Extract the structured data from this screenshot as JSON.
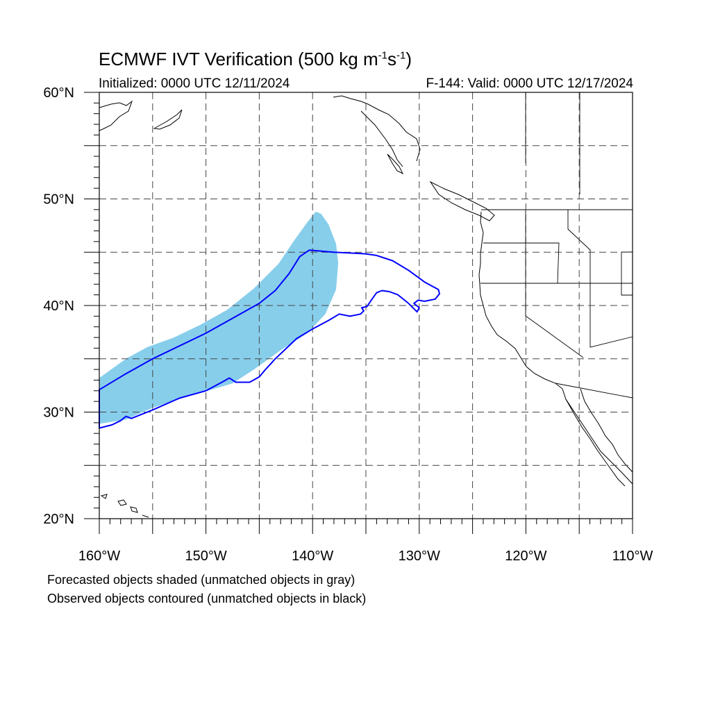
{
  "title": {
    "text": "ECMWF IVT Verification (500 kg m",
    "exp1": "-1",
    "mid": "s",
    "exp2": "-1",
    "close": ")"
  },
  "subtitle": {
    "initialized": "Initialized: 0000 UTC 12/11/2024",
    "valid": "F-144: Valid: 0000 UTC 12/17/2024"
  },
  "axes": {
    "lat_labels": [
      "60°N",
      "50°N",
      "40°N",
      "30°N",
      "20°N"
    ],
    "lon_labels": [
      "160°W",
      "150°W",
      "140°W",
      "130°W",
      "120°W",
      "110°W"
    ],
    "lat_range": [
      20,
      60
    ],
    "lon_range": [
      -160,
      -110
    ],
    "grid_spacing_deg": 5
  },
  "legend": {
    "line1": "Forecasted objects shaded (unmatched objects in gray)",
    "line2": "Observed objects contoured (unmatched objects in black)"
  },
  "colors": {
    "forecast_fill": "#87ceeb",
    "observed_contour": "#0000ff",
    "coastline": "#000000",
    "grid": "#555555"
  },
  "map_objects": {
    "forecast_object": {
      "style": "shaded",
      "outline_lonlat": [
        [
          -160,
          28.9
        ],
        [
          -157.5,
          29.3
        ],
        [
          -155,
          30.4
        ],
        [
          -152,
          31.4
        ],
        [
          -149.5,
          32.1
        ],
        [
          -147.5,
          32.7
        ],
        [
          -145.5,
          34.0
        ],
        [
          -143.0,
          35.8
        ],
        [
          -140.5,
          37.4
        ],
        [
          -138.8,
          39.2
        ],
        [
          -137.8,
          41.5
        ],
        [
          -137.6,
          44.0
        ],
        [
          -137.8,
          45.8
        ],
        [
          -138.5,
          47.6
        ],
        [
          -139.2,
          48.6
        ],
        [
          -139.7,
          48.8
        ],
        [
          -140.5,
          47.8
        ],
        [
          -141.8,
          46.0
        ],
        [
          -143.2,
          43.9
        ],
        [
          -145.5,
          41.6
        ],
        [
          -148.0,
          39.6
        ],
        [
          -150.5,
          38.2
        ],
        [
          -153.0,
          37.0
        ],
        [
          -155.5,
          36.1
        ],
        [
          -157.5,
          35.0
        ],
        [
          -160,
          33.2
        ]
      ]
    },
    "observed_object": {
      "style": "contour",
      "outline_lonlat": [
        [
          -160,
          32.1
        ],
        [
          -157.5,
          33.6
        ],
        [
          -155,
          35.0
        ],
        [
          -152.5,
          36.2
        ],
        [
          -150,
          37.4
        ],
        [
          -147.5,
          38.8
        ],
        [
          -145,
          40.2
        ],
        [
          -143.5,
          41.4
        ],
        [
          -142.2,
          43.0
        ],
        [
          -141.2,
          44.6
        ],
        [
          -140.3,
          45.2
        ],
        [
          -138,
          45.0
        ],
        [
          -136,
          44.9
        ],
        [
          -135,
          44.85
        ],
        [
          -134,
          44.7
        ],
        [
          -132.5,
          44.2
        ],
        [
          -131,
          43.3
        ],
        [
          -129.5,
          42.2
        ],
        [
          -128.2,
          41.5
        ],
        [
          -128.1,
          41.1
        ],
        [
          -128.5,
          40.6
        ],
        [
          -129.5,
          40.4
        ],
        [
          -130.1,
          40.5
        ],
        [
          -130.5,
          40.2
        ],
        [
          -130.0,
          39.8
        ],
        [
          -130.2,
          39.4
        ],
        [
          -131.0,
          40.2
        ],
        [
          -132.0,
          41.0
        ],
        [
          -132.8,
          41.3
        ],
        [
          -133.5,
          41.4
        ],
        [
          -134.0,
          41.2
        ],
        [
          -134.5,
          40.5
        ],
        [
          -134.9,
          39.9
        ],
        [
          -135.4,
          39.8
        ],
        [
          -135.2,
          39.5
        ],
        [
          -135.5,
          39.2
        ],
        [
          -136.5,
          39.0
        ],
        [
          -137.5,
          39.2
        ],
        [
          -138.5,
          38.6
        ],
        [
          -140.0,
          37.8
        ],
        [
          -141.5,
          36.9
        ],
        [
          -143.5,
          35.0
        ],
        [
          -144.5,
          33.9
        ],
        [
          -145,
          33.3
        ],
        [
          -145.9,
          32.8
        ],
        [
          -147.2,
          32.8
        ],
        [
          -147.8,
          33.2
        ],
        [
          -148.5,
          32.8
        ],
        [
          -150,
          32.0
        ],
        [
          -152.5,
          31.3
        ],
        [
          -155,
          30.2
        ],
        [
          -157,
          29.4
        ],
        [
          -157.5,
          29.6
        ],
        [
          -158.0,
          29.2
        ],
        [
          -158.8,
          28.8
        ],
        [
          -160,
          28.5
        ]
      ]
    }
  }
}
